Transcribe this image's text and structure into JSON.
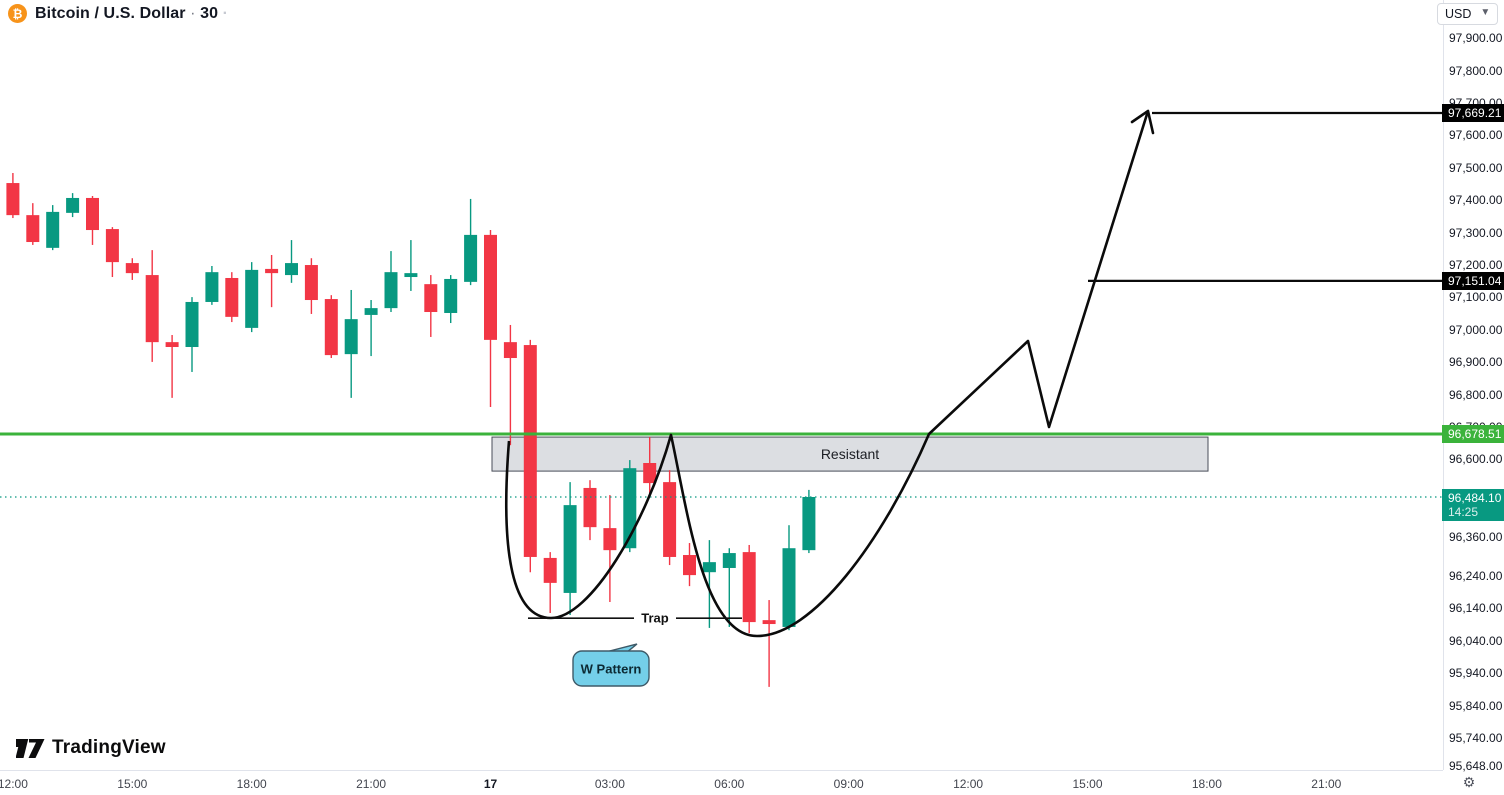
{
  "header": {
    "icon_glyph": "₿",
    "symbol": "Bitcoin / U.S. Dollar",
    "sep": "·",
    "interval": "30",
    "trail_dot": "·"
  },
  "toolbar": {
    "currency": "USD"
  },
  "watermark": {
    "brand": "TradingView"
  },
  "annotations": {
    "zone_label": "Resistant",
    "trap_label": "Trap",
    "callout_label": "W Pattern"
  },
  "colors": {
    "up": "#089981",
    "down": "#f23645",
    "resistance_line": "#3bb33b",
    "drawing": "#0b0b0b",
    "zone_fill": "#b2b5be",
    "zone_border": "#4a4e59",
    "callout_fill": "#74cfe9",
    "callout_border": "#3e5a68",
    "current_badge": "#089981",
    "target_badge": "#000000",
    "axis_text": "#131722"
  },
  "price_axis": {
    "ticks": [
      97900,
      97800,
      97700,
      97600,
      97500,
      97400,
      97300,
      97200,
      97100,
      97000,
      96900,
      96800,
      96700,
      96600,
      96360,
      96240,
      96140,
      96040,
      95940,
      95840,
      95740
    ],
    "edge_tick": 95648,
    "labels": [
      {
        "name": "target-price-label-1",
        "text": "97,669.21",
        "price": 97669.21,
        "bg": "#000000"
      },
      {
        "name": "target-price-label-2",
        "text": "97,151.04",
        "price": 97151.04,
        "bg": "#000000"
      },
      {
        "name": "resistance-price-label",
        "text": "96,678.51",
        "price": 96678.51,
        "bg": "#3bb33b"
      },
      {
        "name": "current-price-label",
        "text": "96,484.10",
        "sub": "14:25",
        "price": 96484.1,
        "bg": "#089981"
      }
    ]
  },
  "time_axis": {
    "ticks": [
      {
        "i": 1,
        "label": "12:00"
      },
      {
        "i": 7,
        "label": "15:00"
      },
      {
        "i": 13,
        "label": "18:00"
      },
      {
        "i": 19,
        "label": "21:00"
      },
      {
        "i": 25,
        "label": "17",
        "bold": true
      },
      {
        "i": 31,
        "label": "03:00"
      },
      {
        "i": 37,
        "label": "06:00"
      },
      {
        "i": 43,
        "label": "09:00"
      },
      {
        "i": 49,
        "label": "12:00"
      },
      {
        "i": 55,
        "label": "15:00"
      },
      {
        "i": 61,
        "label": "18:00"
      },
      {
        "i": 67,
        "label": "21:00"
      }
    ]
  },
  "chart_data": {
    "type": "candlestick",
    "title": "Bitcoin / U.S. Dollar",
    "interval_minutes": 30,
    "currency": "USD",
    "current_price": 96484.1,
    "countdown": "14:25",
    "levels": {
      "resistance_line": 96678.51,
      "targets": [
        97669.21,
        97151.04
      ]
    },
    "resistance_zone": {
      "label": "Resistant",
      "price_top": 96669,
      "price_bottom": 96564
    },
    "pattern": {
      "name": "W Pattern",
      "trap_level": 96110,
      "projection_peak": 96966,
      "projection_dip": 96700
    },
    "candles": [
      [
        "11:30",
        97308,
        97478,
        97302,
        97462
      ],
      [
        "12:00",
        97453,
        97484,
        97345,
        97354
      ],
      [
        "12:30",
        97354,
        97391,
        97262,
        97271
      ],
      [
        "13:00",
        97253,
        97385,
        97246,
        97364
      ],
      [
        "13:30",
        97361,
        97422,
        97348,
        97407
      ],
      [
        "14:00",
        97407,
        97413,
        97262,
        97308
      ],
      [
        "14:30",
        97311,
        97317,
        97163,
        97209
      ],
      [
        "15:00",
        97206,
        97221,
        97154,
        97175
      ],
      [
        "15:30",
        97169,
        97246,
        96901,
        96962
      ],
      [
        "16:00",
        96962,
        96984,
        96790,
        96947
      ],
      [
        "16:30",
        96947,
        97101,
        96870,
        97086
      ],
      [
        "17:00",
        97086,
        97197,
        97077,
        97178
      ],
      [
        "17:30",
        97160,
        97178,
        97024,
        97040
      ],
      [
        "18:00",
        97006,
        97209,
        96993,
        97185
      ],
      [
        "18:30",
        97188,
        97231,
        97070,
        97175
      ],
      [
        "19:00",
        97169,
        97277,
        97145,
        97206
      ],
      [
        "19:30",
        97200,
        97221,
        97049,
        97092
      ],
      [
        "20:00",
        97095,
        97107,
        96913,
        96922
      ],
      [
        "20:30",
        96925,
        97123,
        96790,
        97033
      ],
      [
        "21:00",
        97046,
        97092,
        96919,
        97067
      ],
      [
        "21:30",
        97067,
        97243,
        97055,
        97178
      ],
      [
        "22:00",
        97163,
        97277,
        97120,
        97175
      ],
      [
        "22:30",
        97141,
        97169,
        96978,
        97055
      ],
      [
        "23:00",
        97052,
        97169,
        97021,
        97157
      ],
      [
        "23:30",
        97148,
        97404,
        97138,
        97293
      ],
      [
        "00:00",
        97293,
        97308,
        96762,
        96969
      ],
      [
        "00:30",
        96962,
        97015,
        96644,
        96913
      ],
      [
        "01:00",
        96953,
        96969,
        96252,
        96299
      ],
      [
        "01:30",
        96296,
        96314,
        96126,
        96219
      ],
      [
        "02:00",
        96188,
        96530,
        96120,
        96459
      ],
      [
        "02:30",
        96512,
        96536,
        96351,
        96391
      ],
      [
        "03:00",
        96388,
        96490,
        96160,
        96320
      ],
      [
        "03:30",
        96326,
        96598,
        96314,
        96573
      ],
      [
        "04:00",
        96589,
        96669,
        96484,
        96527
      ],
      [
        "04:30",
        96530,
        96567,
        96274,
        96299
      ],
      [
        "05:00",
        96305,
        96342,
        96209,
        96243
      ],
      [
        "05:30",
        96252,
        96351,
        96080,
        96283
      ],
      [
        "06:00",
        96265,
        96326,
        96083,
        96311
      ],
      [
        "06:30",
        96314,
        96336,
        96064,
        96098
      ],
      [
        "07:00",
        96104,
        96166,
        95898,
        96092
      ],
      [
        "07:30",
        96083,
        96397,
        96073,
        96326
      ],
      [
        "08:00",
        96320,
        96506,
        96311,
        96484.1
      ]
    ]
  }
}
